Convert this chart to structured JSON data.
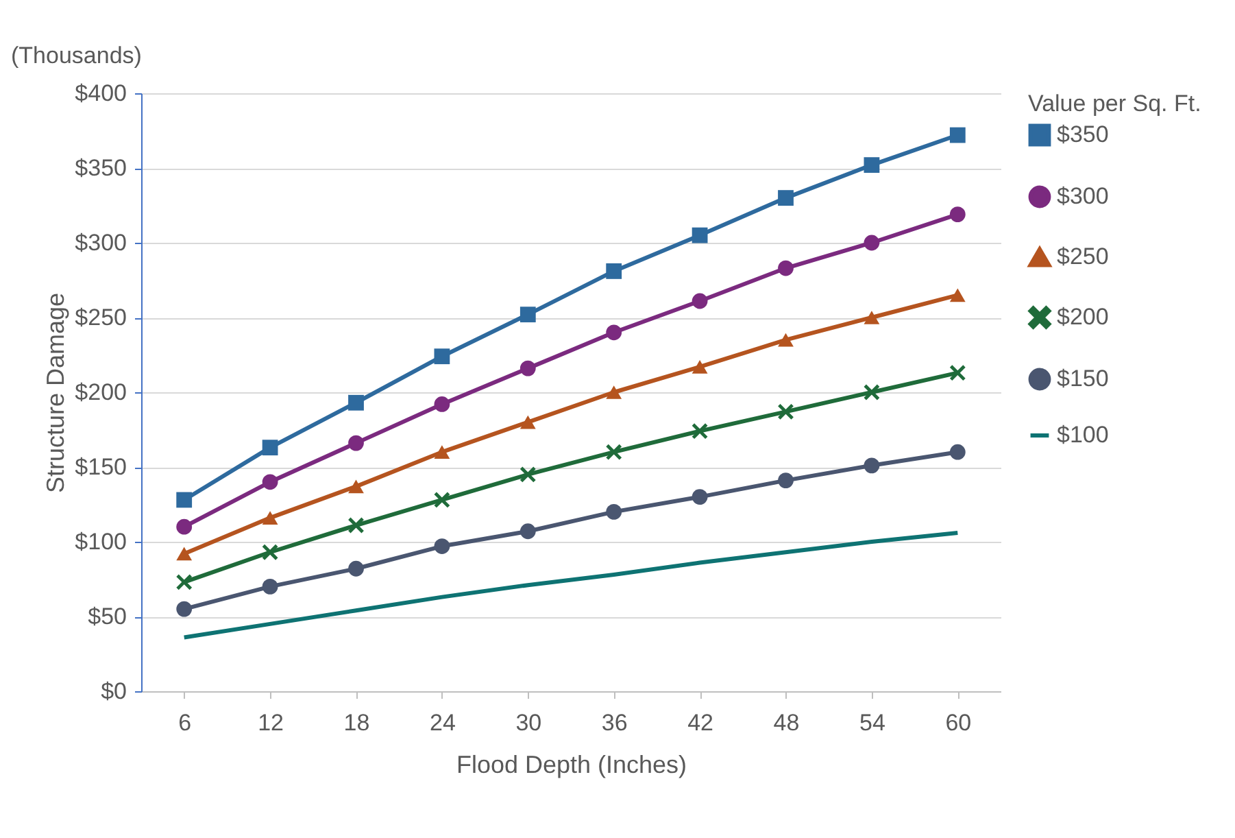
{
  "chart_data": {
    "type": "line",
    "xlabel": "Flood Depth (Inches)",
    "ylabel": "Structure Damage",
    "legend_title": "Value per Sq. Ft.",
    "annotations": [
      "(Thousands)"
    ],
    "categories": [
      "6",
      "12",
      "18",
      "24",
      "30",
      "36",
      "42",
      "48",
      "54",
      "60"
    ],
    "ylim": [
      0,
      400
    ],
    "yticks": [
      {
        "value": 0,
        "label": "$0"
      },
      {
        "value": 50,
        "label": "$50"
      },
      {
        "value": 100,
        "label": "$100"
      },
      {
        "value": 150,
        "label": "$150"
      },
      {
        "value": 200,
        "label": "$200"
      },
      {
        "value": 250,
        "label": "$250"
      },
      {
        "value": 300,
        "label": "$300"
      },
      {
        "value": 350,
        "label": "$350"
      },
      {
        "value": 400,
        "label": "$400"
      }
    ],
    "grid": "y",
    "legend": "right",
    "series": [
      {
        "name": "$350",
        "color": "#2e6a9e",
        "marker": "square",
        "values": [
          128,
          163,
          193,
          224,
          252,
          281,
          305,
          330,
          352,
          372
        ]
      },
      {
        "name": "$300",
        "color": "#7b2a7f",
        "marker": "circle",
        "values": [
          110,
          140,
          166,
          192,
          216,
          240,
          261,
          283,
          300,
          319
        ]
      },
      {
        "name": "$250",
        "color": "#b5541f",
        "marker": "triangle",
        "values": [
          92,
          116,
          137,
          160,
          180,
          200,
          217,
          235,
          250,
          265
        ]
      },
      {
        "name": "$200",
        "color": "#1f6b3a",
        "marker": "cross",
        "values": [
          73,
          93,
          111,
          128,
          145,
          160,
          174,
          187,
          200,
          213
        ]
      },
      {
        "name": "$150",
        "color": "#4a5670",
        "marker": "circle",
        "values": [
          55,
          70,
          82,
          97,
          107,
          120,
          130,
          141,
          151,
          160
        ]
      },
      {
        "name": "$100",
        "color": "#0e7373",
        "marker": "none",
        "values": [
          36,
          45,
          54,
          63,
          71,
          78,
          86,
          93,
          100,
          106
        ]
      }
    ]
  }
}
